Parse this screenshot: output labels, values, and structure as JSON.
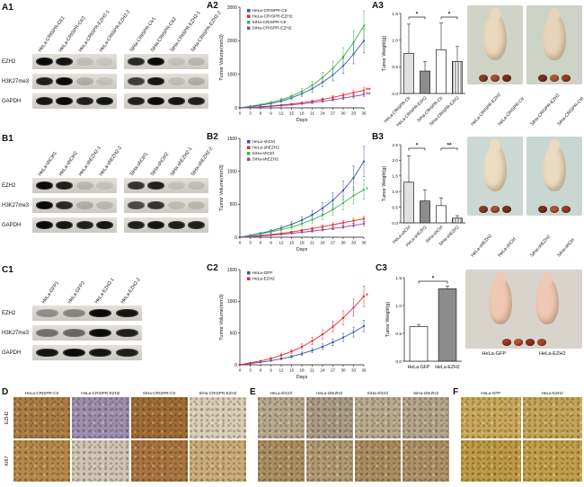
{
  "panel_labels": {
    "A1": "A1",
    "A2": "A2",
    "A3": "A3",
    "B1": "B1",
    "B2": "B2",
    "B3": "B3",
    "C1": "C1",
    "C2": "C2",
    "C3": "C3",
    "D": "D",
    "E": "E",
    "F": "F"
  },
  "blots": {
    "A1": {
      "lanes": [
        "HeLa-CRISPR-Ctr1",
        "HeLa-CRISPR-Ctr2",
        "HeLa-CRISPR-EZH2-1",
        "HeLa-CRISPR-EZH2-2",
        "SiHa-CRISPR-Ctr1",
        "SiHa-CRISPR-Ctr2",
        "SiHa-CRISPR-EZH2-1",
        "SiHa-CRISPR-EZH2-2"
      ],
      "groups": [
        4,
        4
      ],
      "rows": [
        {
          "label": "EZH2",
          "bands": [
            1,
            0.95,
            0.12,
            0.08,
            0.85,
            1,
            0.1,
            0.15
          ]
        },
        {
          "label": "H3K27me3",
          "bands": [
            0.9,
            1,
            0.2,
            0.1,
            0.75,
            0.95,
            0.12,
            0.2
          ]
        },
        {
          "label": "GAPDH",
          "bands": [
            0.95,
            1,
            0.9,
            0.95,
            0.9,
            1,
            0.95,
            0.9
          ]
        }
      ]
    },
    "B1": {
      "lanes": [
        "HeLa-shCtrl1",
        "HeLa-shCtrl2",
        "HeLa-shEZH2-1",
        "HeLa-shEZH2-2",
        "SiHa-shCtrl1",
        "SiHa-shCtrl2",
        "SiHa-shEZH2-1",
        "SiHa-shEZH2-2"
      ],
      "groups": [
        4,
        4
      ],
      "rows": [
        {
          "label": "EZH2",
          "bands": [
            1,
            0.9,
            0.15,
            0.1,
            0.8,
            0.9,
            0.1,
            0.12
          ]
        },
        {
          "label": "H3K27me3",
          "bands": [
            1,
            0.85,
            0.2,
            0.15,
            0.7,
            0.8,
            0.12,
            0.15
          ]
        },
        {
          "label": "GAPDH",
          "bands": [
            1,
            0.95,
            0.9,
            0.95,
            0.9,
            0.95,
            0.9,
            0.9
          ]
        }
      ]
    },
    "C1": {
      "lanes": [
        "HeLa-GFP1",
        "HeLa-GFP2",
        "HeLa-EZH2-1",
        "HeLa-EZH2-2"
      ],
      "groups": [
        4
      ],
      "rows": [
        {
          "label": "EZH2",
          "bands": [
            0.35,
            0.4,
            1,
            0.95
          ]
        },
        {
          "label": "H3K27me3",
          "bands": [
            0.5,
            0.55,
            1,
            0.9
          ]
        },
        {
          "label": "GAPDH",
          "bands": [
            0.95,
            1,
            0.95,
            0.9
          ]
        }
      ]
    }
  },
  "chart_data": [
    {
      "id": "A2",
      "type": "line",
      "xlabel": "Days",
      "ylabel": "Tumor Volume(mm3)",
      "x": [
        0,
        3,
        6,
        9,
        12,
        15,
        18,
        21,
        24,
        27,
        30,
        33,
        36
      ],
      "ylim": [
        0,
        3000
      ],
      "yticks": [
        "0",
        "1000",
        "2000",
        "3000"
      ],
      "series": [
        {
          "name": "HeLa-CRISPR-Ctr",
          "color": "#3953a4",
          "values": [
            0,
            40,
            80,
            130,
            200,
            300,
            420,
            570,
            760,
            980,
            1250,
            1600,
            2000
          ],
          "error_frac": 0.18
        },
        {
          "name": "HeLa-CRISPR-EZH2",
          "color": "#ee2229",
          "values": [
            0,
            15,
            35,
            55,
            85,
            115,
            150,
            195,
            250,
            310,
            380,
            450,
            520
          ],
          "error_frac": 0.15,
          "end_label": "**"
        },
        {
          "name": "SiHa-CRISPR-Ctr",
          "color": "#3bb54a",
          "values": [
            0,
            50,
            100,
            160,
            240,
            350,
            490,
            670,
            900,
            1180,
            1520,
            1950,
            2450
          ],
          "error_frac": 0.18
        },
        {
          "name": "SiHa-CRISPR-EZH2",
          "color": "#8a4a9e",
          "values": [
            0,
            10,
            25,
            45,
            65,
            90,
            120,
            155,
            195,
            240,
            290,
            340,
            395
          ],
          "error_frac": 0.15,
          "end_label": "**"
        }
      ]
    },
    {
      "id": "B2",
      "type": "line",
      "xlabel": "Days",
      "ylabel": "Tumor Volume(mm3)",
      "x": [
        0,
        3,
        6,
        9,
        12,
        15,
        18,
        21,
        24,
        27,
        30,
        33,
        36
      ],
      "ylim": [
        0,
        1500
      ],
      "yticks": [
        "0",
        "500",
        "1000",
        "1500"
      ],
      "series": [
        {
          "name": "HeLa-shCtrl",
          "color": "#3953a4",
          "values": [
            0,
            30,
            60,
            95,
            140,
            195,
            260,
            340,
            440,
            560,
            710,
            900,
            1150
          ],
          "error_frac": 0.2
        },
        {
          "name": "HeLa-shEZH2",
          "color": "#ee2229",
          "values": [
            0,
            12,
            25,
            40,
            58,
            80,
            105,
            130,
            160,
            190,
            220,
            250,
            280
          ],
          "error_frac": 0.15
        },
        {
          "name": "SiHa-shCtrl",
          "color": "#3bb54a",
          "values": [
            0,
            25,
            50,
            80,
            115,
            155,
            205,
            265,
            335,
            420,
            520,
            630,
            720
          ],
          "error_frac": 0.2,
          "end_label": "*"
        },
        {
          "name": "SiHa-shEZH2",
          "color": "#8a4a9e",
          "values": [
            0,
            8,
            18,
            30,
            42,
            58,
            75,
            92,
            112,
            132,
            155,
            180,
            205
          ],
          "error_frac": 0.15
        }
      ]
    },
    {
      "id": "C2",
      "type": "line",
      "xlabel": "Days",
      "ylabel": "Tumor Volume(mm3)",
      "x": [
        0,
        3,
        6,
        9,
        12,
        15,
        18,
        21,
        24,
        27,
        30,
        33,
        36
      ],
      "ylim": [
        0,
        1500
      ],
      "yticks": [
        "0",
        "500",
        "1000",
        "1500"
      ],
      "series": [
        {
          "name": "HeLa-GFP",
          "color": "#3953a4",
          "values": [
            0,
            20,
            40,
            65,
            95,
            130,
            175,
            225,
            285,
            355,
            430,
            515,
            610
          ],
          "error_frac": 0.15
        },
        {
          "name": "HeLa-EZH2",
          "color": "#ee2229",
          "values": [
            0,
            30,
            60,
            100,
            150,
            210,
            285,
            375,
            480,
            600,
            740,
            900,
            1080
          ],
          "error_frac": 0.15,
          "end_label": "*"
        }
      ]
    },
    {
      "id": "A3",
      "type": "bar",
      "ylabel": "Tumor Weight(g)",
      "categories": [
        "HeLa-CRISPR-Ctr",
        "HeLa-CRISPR-EZH2",
        "SiHa-CRISPR-Ctr",
        "SiHa-CRISPR-EZH2"
      ],
      "values": [
        0.75,
        0.42,
        0.82,
        0.6
      ],
      "errors": [
        0.55,
        0.18,
        0.5,
        0.28
      ],
      "ylim": [
        0,
        1.5
      ],
      "yticks": [
        "0.0",
        "0.5",
        "1.0",
        "1.5"
      ],
      "fills": [
        "#e0e0e0",
        "#8c8c8c",
        "#ffffff",
        "stripes"
      ],
      "sig": [
        {
          "a": 0,
          "b": 1,
          "label": "*"
        },
        {
          "a": 2,
          "b": 3,
          "label": "*"
        }
      ],
      "rotate_labels": true
    },
    {
      "id": "B3",
      "type": "bar",
      "ylabel": "Tumor Weight(g)",
      "categories": [
        "HeLa-shCtrl",
        "HeLa-shEZH2",
        "SiHa-shCtrl",
        "SiHa-shEZH2"
      ],
      "values": [
        1.3,
        0.7,
        0.55,
        0.15
      ],
      "errors": [
        0.85,
        0.35,
        0.25,
        0.08
      ],
      "ylim": [
        0,
        2.5
      ],
      "yticks": [
        "0.0",
        "0.5",
        "1.0",
        "1.5",
        "2.0",
        "2.5"
      ],
      "fills": [
        "#e0e0e0",
        "#8c8c8c",
        "#ffffff",
        "stripes"
      ],
      "sig": [
        {
          "a": 0,
          "b": 1,
          "label": "*"
        },
        {
          "a": 2,
          "b": 3,
          "label": "**"
        }
      ],
      "rotate_labels": true
    },
    {
      "id": "C3",
      "type": "bar",
      "ylabel": "Tumor Weight(g)",
      "categories": [
        "HeLa-GFP",
        "HeLa-EZH2"
      ],
      "values": [
        0.62,
        1.3
      ],
      "errors": [
        0.04,
        0.05
      ],
      "ylim": [
        0,
        1.5
      ],
      "yticks": [
        "0.0",
        "0.5",
        "1.0",
        "1.5"
      ],
      "fills": [
        "#ffffff",
        "#8c8c8c"
      ],
      "sig": [
        {
          "a": 0,
          "b": 1,
          "label": "*"
        }
      ],
      "rotate_labels": false
    }
  ],
  "mice": {
    "A3": {
      "rotate_labels": true,
      "photos": [
        {
          "bg": "#cfd4c6",
          "mouse": "#e9d8bd",
          "mice": 1,
          "tumors": [
            "#8a3a24",
            "#a8502f",
            "#7c2d1c"
          ],
          "labels": [
            "HeLa-CRISPR-EZH2",
            "HeLa-CRISPR-Ctr"
          ]
        },
        {
          "bg": "#ccd2c4",
          "mouse": "#e7d5ba",
          "mice": 1,
          "tumors": [
            "#7c2d1c",
            "#b05535",
            "#933c22"
          ],
          "labels": [
            "SiHa-CRISPR-EZH2",
            "SiHa-CRISPR-Ctrl"
          ]
        }
      ]
    },
    "B3": {
      "rotate_labels": true,
      "photos": [
        {
          "bg": "#ccd8d4",
          "mouse": "#ecdcc2",
          "mice": 1,
          "tumors": [
            "#8a3a24",
            "#a8502f",
            "#7c2d1c"
          ],
          "labels": [
            "HeLa-shEZH2",
            "HeLa-shCtrl"
          ]
        },
        {
          "bg": "#c9d6d2",
          "mouse": "#eadac0",
          "mice": 1,
          "tumors": [
            "#7c2d1c",
            "#b05535",
            "#933c22"
          ],
          "labels": [
            "SiHa-shEZH2",
            "SiHa-shCtrl"
          ]
        }
      ]
    },
    "C3": {
      "rotate_labels": false,
      "photos": [
        {
          "bg": "#d8d4cb",
          "mouse": "#efc9b5",
          "mice": 2,
          "tumors": [
            "#9c3b22",
            "#b1512f",
            "#8a3320",
            "#a64a2c"
          ],
          "labels": [
            "HeLa-GFP",
            "HeLa-EZH2"
          ]
        }
      ]
    }
  },
  "ihc": {
    "D": {
      "col_labels": [
        "HeLa-CRISPR-Ctr",
        "HeLa-CRISPR-EZH2",
        "SiHa-CRISPR-Ctr",
        "SiHa-CRISPR-EZH2"
      ],
      "row_labels": [
        "EZH2",
        "Ki67"
      ],
      "tiles": [
        [
          "#ab7c43",
          "#9c8fb0",
          "#a06c33",
          "#d8cdb6"
        ],
        [
          "#b5894a",
          "#cfc5b4",
          "#a9743f",
          "#c9ad77"
        ]
      ]
    },
    "E": {
      "col_labels": [
        "HeLa-shCtrl",
        "HeLa-shEZH2",
        "SiHa-shCtrl",
        "SiHa-shEZH2"
      ],
      "tiles": [
        [
          "#b7a88d",
          "#a99b85",
          "#b9aa8e",
          "#b3a58b"
        ],
        [
          "#a98e5f",
          "#b09a72",
          "#a88d5e",
          "#ac9166"
        ]
      ]
    },
    "F": {
      "col_labels": [
        "HeLa-GFP",
        "HeLa-EZH2"
      ],
      "tiles": [
        [
          "#c9a75b",
          "#c4a458"
        ],
        [
          "#bd9a43",
          "#c19e48"
        ]
      ]
    }
  }
}
